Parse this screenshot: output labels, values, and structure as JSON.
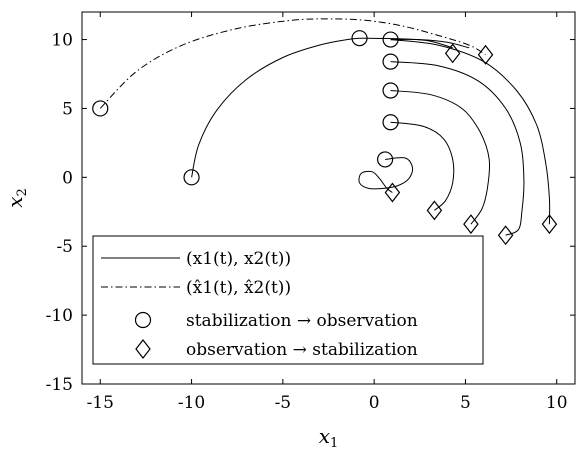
{
  "chart_data": {
    "type": "line",
    "title": "",
    "xlabel": "x1",
    "ylabel": "x2",
    "xlim": [
      -16,
      11
    ],
    "ylim": [
      -15,
      12
    ],
    "xticks": [
      {
        "value": -15,
        "label": "-15"
      },
      {
        "value": -10,
        "label": "-10"
      },
      {
        "value": -5,
        "label": "-5"
      },
      {
        "value": 0,
        "label": "0"
      },
      {
        "value": 5,
        "label": "5"
      },
      {
        "value": 10,
        "label": "10"
      }
    ],
    "yticks": [
      {
        "value": 10,
        "label": "10"
      },
      {
        "value": 5,
        "label": "5"
      },
      {
        "value": 0,
        "label": "0"
      },
      {
        "value": -5,
        "label": "-5"
      },
      {
        "value": -10,
        "label": "-10"
      },
      {
        "value": -15,
        "label": "-15"
      }
    ],
    "grid": false,
    "legend_position": "lower-left",
    "legend": [
      {
        "label": "(x1(t), x2(t))",
        "symbol": "solid-line"
      },
      {
        "label": "(x̂1(t), x̂2(t))",
        "symbol": "dashdot-line"
      },
      {
        "label": "stabilization → observation",
        "symbol": "circle"
      },
      {
        "label": "observation → stabilization",
        "symbol": "diamond"
      }
    ],
    "series": [
      {
        "name": "(x1(t), x2(t))",
        "style": "solid",
        "segments": [
          [
            [
              -10,
              0
            ],
            [
              -9.6,
              2.4
            ],
            [
              -8.6,
              4.9
            ],
            [
              -7.0,
              7.1
            ],
            [
              -5.0,
              8.7
            ],
            [
              -3.0,
              9.6
            ],
            [
              -1.5,
              10.0
            ],
            [
              -0.8,
              10.1
            ]
          ],
          [
            [
              -0.8,
              10.1
            ],
            [
              1.5,
              10.05
            ],
            [
              3.0,
              9.9
            ],
            [
              4.3,
              9.4
            ]
          ],
          [
            [
              0.9,
              10.0
            ],
            [
              2.5,
              10.0
            ],
            [
              4.0,
              9.8
            ],
            [
              5.2,
              9.4
            ]
          ],
          [
            [
              0.9,
              10.0
            ],
            [
              3.5,
              9.6
            ],
            [
              6.0,
              8.4
            ],
            [
              7.8,
              6.3
            ],
            [
              8.9,
              3.8
            ],
            [
              9.4,
              1.0
            ],
            [
              9.6,
              -1.5
            ],
            [
              9.6,
              -3.4
            ]
          ],
          [
            [
              0.9,
              8.4
            ],
            [
              3.5,
              8.1
            ],
            [
              5.7,
              7.0
            ],
            [
              7.2,
              5.0
            ],
            [
              8.0,
              2.5
            ],
            [
              8.2,
              -0.2
            ],
            [
              8.1,
              -2.4
            ],
            [
              7.9,
              -3.8
            ],
            [
              7.2,
              -4.2
            ]
          ],
          [
            [
              0.9,
              6.3
            ],
            [
              3.1,
              6.0
            ],
            [
              4.8,
              5.0
            ],
            [
              5.8,
              3.3
            ],
            [
              6.3,
              1.3
            ],
            [
              6.2,
              -0.8
            ],
            [
              5.9,
              -2.3
            ],
            [
              5.3,
              -3.4
            ]
          ],
          [
            [
              0.9,
              4.0
            ],
            [
              2.7,
              3.7
            ],
            [
              3.8,
              2.8
            ],
            [
              4.3,
              1.3
            ],
            [
              4.3,
              -0.4
            ],
            [
              3.9,
              -1.7
            ],
            [
              3.3,
              -2.4
            ]
          ],
          [
            [
              0.6,
              1.3
            ],
            [
              1.7,
              1.4
            ],
            [
              2.1,
              0.7
            ],
            [
              1.9,
              -0.1
            ],
            [
              1.3,
              -0.6
            ],
            [
              0.5,
              -0.8
            ],
            [
              -0.3,
              -0.8
            ],
            [
              -0.8,
              -0.4
            ],
            [
              -0.7,
              0.3
            ],
            [
              -0.1,
              0.4
            ],
            [
              0.3,
              -0.1
            ],
            [
              0.7,
              -0.8
            ],
            [
              1.0,
              -1.1
            ]
          ]
        ]
      },
      {
        "name": "(x̂1(t), x̂2(t))",
        "style": "dashdot",
        "segments": [
          [
            [
              -15,
              5
            ],
            [
              -13.0,
              7.7
            ],
            [
              -10.5,
              9.6
            ],
            [
              -7.5,
              10.8
            ],
            [
              -4.5,
              11.4
            ],
            [
              -2.5,
              11.5
            ],
            [
              -0.5,
              11.4
            ],
            [
              1.5,
              11.0
            ],
            [
              3.5,
              10.3
            ],
            [
              5.2,
              9.6
            ],
            [
              6.1,
              8.9
            ]
          ]
        ]
      }
    ],
    "markers": {
      "circles": [
        [
          -10,
          0
        ],
        [
          -15,
          5
        ],
        [
          -0.8,
          10.1
        ],
        [
          0.9,
          10.0
        ],
        [
          0.9,
          8.4
        ],
        [
          0.9,
          6.3
        ],
        [
          0.9,
          4.0
        ],
        [
          0.6,
          1.3
        ]
      ],
      "diamonds": [
        [
          4.3,
          9.0
        ],
        [
          6.1,
          8.9
        ],
        [
          1.0,
          -1.1
        ],
        [
          3.3,
          -2.4
        ],
        [
          5.3,
          -3.4
        ],
        [
          7.2,
          -4.2
        ],
        [
          9.6,
          -3.4
        ]
      ]
    }
  }
}
